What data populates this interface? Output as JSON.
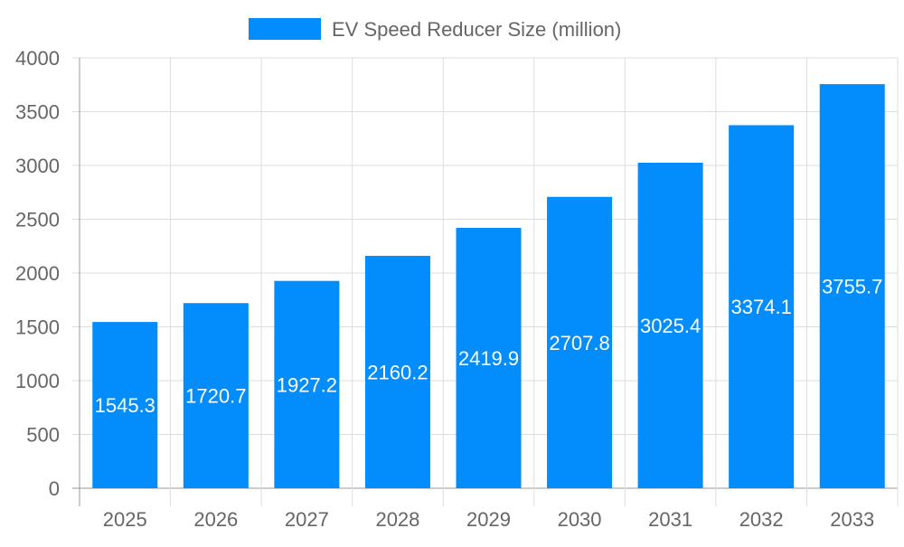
{
  "chart_data": {
    "type": "bar",
    "title": "",
    "xlabel": "",
    "ylabel": "",
    "categories": [
      "2025",
      "2026",
      "2027",
      "2028",
      "2029",
      "2030",
      "2031",
      "2032",
      "2033"
    ],
    "series": [
      {
        "name": "EV Speed Reducer Size (million)",
        "values": [
          1545.3,
          1720.7,
          1927.2,
          2160.2,
          2419.9,
          2707.8,
          3025.4,
          3374.1,
          3755.7
        ],
        "color": "#038cfc"
      }
    ],
    "ylim": [
      0,
      4000
    ],
    "yticks": [
      0,
      500,
      1000,
      1500,
      2000,
      2500,
      3000,
      3500,
      4000
    ],
    "grid": true,
    "legend": "top-center",
    "data_labels": "inside-center"
  }
}
